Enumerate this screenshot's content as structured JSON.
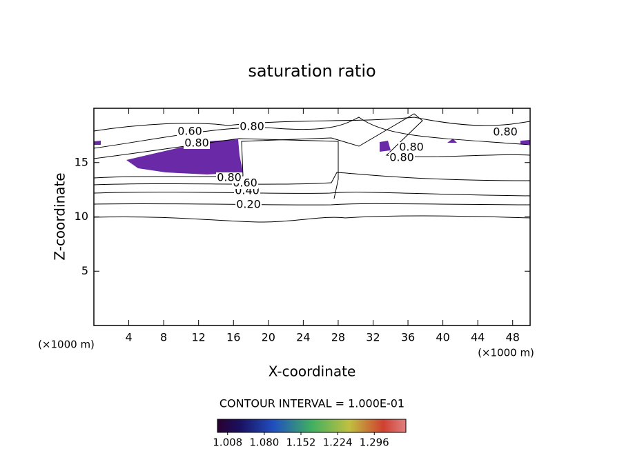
{
  "chart_data": {
    "type": "contour",
    "title": "saturation ratio",
    "x_label": "X-coordinate",
    "y_label": "Z-coordinate",
    "x_unit": "(×1000 m)",
    "y_unit": "(×1000 m)",
    "xlim": [
      0,
      50
    ],
    "xticks": [
      4,
      8,
      12,
      16,
      20,
      24,
      28,
      32,
      36,
      40,
      44,
      48
    ],
    "ylim": [
      0,
      20
    ],
    "yticks": [
      5,
      10,
      15
    ],
    "contour_levels": [
      0.1,
      {
        "value": 0.2,
        "label": "0.20"
      },
      {
        "value": 0.4,
        "label": "0.40"
      },
      {
        "value": 0.6,
        "label": "0.60"
      },
      {
        "value": 0.8,
        "label": "0.80"
      }
    ],
    "contour_interval": "CONTOUR INTERVAL = 1.000E-01",
    "shade_color": "#6a2aa8",
    "clim": [
      0.988,
      1.358
    ],
    "cticks": [
      {
        "value": 1.008,
        "label": "1.008"
      },
      {
        "value": 1.08,
        "label": "1.080"
      },
      {
        "value": 1.152,
        "label": "1.152"
      },
      {
        "value": 1.224,
        "label": "1.224"
      },
      {
        "value": 1.296,
        "label": "1.296"
      }
    ]
  }
}
